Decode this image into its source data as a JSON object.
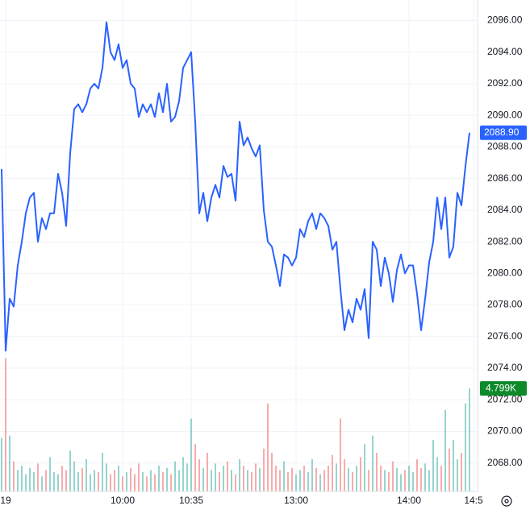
{
  "chart_data": {
    "type": "line",
    "series": [
      {
        "name": "Price",
        "color": "#2962ff",
        "values": [
          2086.6,
          2075.1,
          2078.4,
          2077.9,
          2080.5,
          2082.0,
          2083.8,
          2084.8,
          2085.1,
          2082.0,
          2083.5,
          2082.8,
          2083.8,
          2083.8,
          2086.3,
          2085.1,
          2083.0,
          2087.6,
          2090.4,
          2090.7,
          2090.2,
          2090.7,
          2091.7,
          2092.0,
          2091.7,
          2093.0,
          2095.9,
          2094.0,
          2093.5,
          2094.5,
          2093.0,
          2093.5,
          2092.0,
          2091.7,
          2089.9,
          2090.7,
          2090.2,
          2090.7,
          2089.9,
          2091.4,
          2090.2,
          2092.0,
          2089.6,
          2089.9,
          2090.9,
          2093.0,
          2093.5,
          2094.0,
          2089.6,
          2083.8,
          2085.1,
          2083.3,
          2084.8,
          2085.6,
          2084.8,
          2086.8,
          2086.1,
          2086.3,
          2084.6,
          2089.6,
          2088.1,
          2088.6,
          2087.9,
          2087.4,
          2088.1,
          2084.0,
          2082.0,
          2081.7,
          2080.5,
          2079.2,
          2081.2,
          2081.0,
          2080.5,
          2081.0,
          2082.8,
          2082.3,
          2083.3,
          2083.8,
          2082.8,
          2083.8,
          2083.5,
          2083.0,
          2081.5,
          2082.0,
          2079.0,
          2076.4,
          2077.7,
          2076.9,
          2078.4,
          2077.7,
          2079.0,
          2075.9,
          2082.0,
          2081.5,
          2079.2,
          2081.0,
          2080.0,
          2078.2,
          2080.2,
          2081.2,
          2080.0,
          2080.5,
          2080.5,
          2078.7,
          2076.4,
          2078.4,
          2080.7,
          2082.0,
          2084.8,
          2082.8,
          2084.8,
          2081.0,
          2081.7,
          2085.1,
          2084.3,
          2086.8,
          2088.9
        ]
      },
      {
        "name": "Volume",
        "type": "bar",
        "axis": "y2",
        "up_color": "#26a69a",
        "down_color": "#ef5350",
        "values": [
          2.5,
          6.2,
          2.6,
          1.4,
          1.0,
          1.2,
          0.8,
          1.1,
          0.9,
          1.3,
          0.7,
          1.0,
          1.6,
          0.9,
          0.8,
          1.2,
          1.0,
          1.9,
          1.4,
          0.9,
          1.1,
          1.5,
          0.8,
          1.0,
          0.9,
          1.8,
          1.3,
          0.8,
          1.0,
          1.2,
          0.7,
          0.9,
          1.1,
          0.8,
          1.3,
          0.9,
          0.7,
          1.0,
          0.8,
          1.2,
          0.9,
          1.1,
          0.8,
          1.4,
          1.0,
          1.6,
          1.3,
          3.4,
          2.2,
          1.5,
          1.1,
          1.8,
          1.0,
          1.3,
          0.9,
          1.2,
          1.4,
          1.0,
          0.8,
          1.5,
          1.2,
          1.0,
          0.9,
          1.3,
          1.1,
          2.0,
          4.1,
          1.8,
          1.2,
          1.0,
          1.4,
          0.9,
          1.1,
          0.8,
          1.0,
          1.2,
          0.9,
          1.5,
          1.1,
          0.8,
          1.0,
          1.2,
          1.7,
          1.3,
          3.4,
          1.5,
          1.1,
          0.9,
          1.2,
          1.6,
          2.2,
          1.0,
          2.6,
          1.8,
          1.2,
          1.0,
          0.9,
          1.4,
          1.1,
          0.8,
          1.0,
          1.2,
          0.9,
          1.5,
          1.1,
          1.3,
          1.0,
          2.4,
          1.6,
          1.2,
          3.8,
          2.0,
          2.4,
          1.5,
          1.8,
          4.1,
          4.799
        ]
      }
    ],
    "last_value_label": "2088.90",
    "last_volume_label": "4.799K",
    "last_value_color": "#2962ff",
    "last_volume_color": "#0e8a2b",
    "xlim": [
      0,
      117.6
    ],
    "xticks": [
      {
        "value": 1,
        "label": "19"
      },
      {
        "value": 30,
        "label": "10:00"
      },
      {
        "value": 47,
        "label": "10:35"
      },
      {
        "value": 73,
        "label": "13:00"
      },
      {
        "value": 101,
        "label": "14:00"
      },
      {
        "value": 117,
        "label": "14:5"
      }
    ],
    "ylim": [
      2066.2,
      2097.3
    ],
    "yticks": [
      {
        "value": 2068,
        "label": "2068.00"
      },
      {
        "value": 2070,
        "label": "2070.00"
      },
      {
        "value": 2072,
        "label": "2072.00"
      },
      {
        "value": 2074,
        "label": "2074.00"
      },
      {
        "value": 2076,
        "label": "2076.00"
      },
      {
        "value": 2078,
        "label": "2078.00"
      },
      {
        "value": 2080,
        "label": "2080.00"
      },
      {
        "value": 2082,
        "label": "2082.00"
      },
      {
        "value": 2084,
        "label": "2084.00"
      },
      {
        "value": 2086,
        "label": "2086.00"
      },
      {
        "value": 2088,
        "label": "2088.00"
      },
      {
        "value": 2090,
        "label": "2090.00"
      },
      {
        "value": 2092,
        "label": "2092.00"
      },
      {
        "value": 2094,
        "label": "2094.00"
      },
      {
        "value": 2096,
        "label": "2096.00"
      }
    ],
    "y2lim": [
      0,
      22.9
    ],
    "grid": true
  }
}
